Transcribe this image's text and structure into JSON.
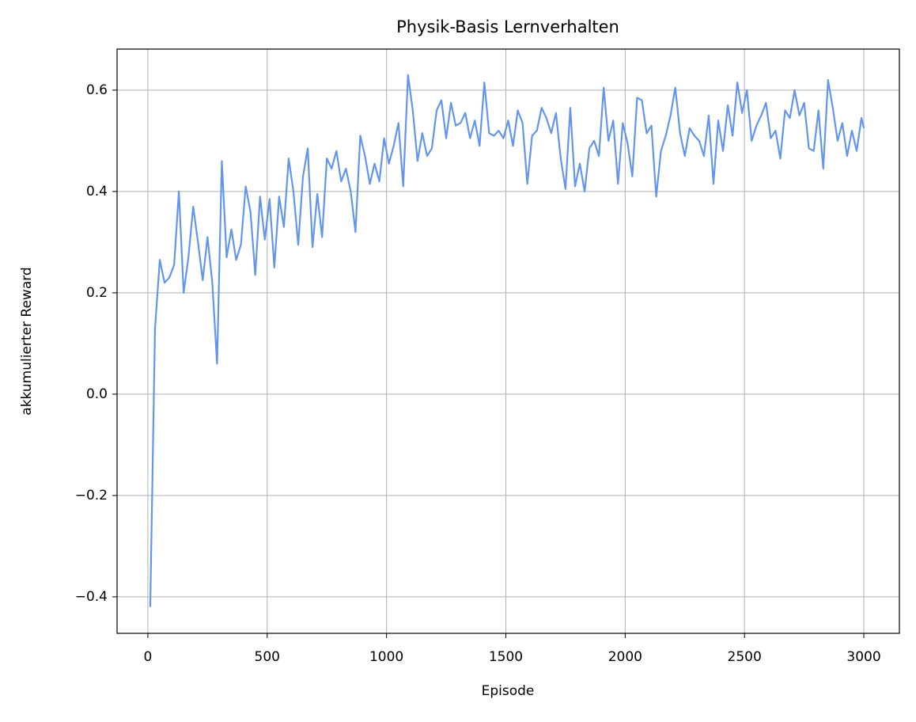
{
  "chart_data": {
    "type": "line",
    "title": "Physik-Basis Lernverhalten",
    "xlabel": "Episode",
    "ylabel": "akkumulierter Reward",
    "x": [
      10,
      30,
      50,
      70,
      90,
      110,
      130,
      150,
      170,
      190,
      210,
      230,
      250,
      270,
      290,
      310,
      330,
      350,
      370,
      390,
      410,
      430,
      450,
      470,
      490,
      510,
      530,
      550,
      570,
      590,
      610,
      630,
      650,
      670,
      690,
      710,
      730,
      750,
      770,
      790,
      810,
      830,
      850,
      870,
      890,
      910,
      930,
      950,
      970,
      990,
      1010,
      1030,
      1050,
      1070,
      1090,
      1110,
      1130,
      1150,
      1170,
      1190,
      1210,
      1230,
      1250,
      1270,
      1290,
      1310,
      1330,
      1350,
      1370,
      1390,
      1410,
      1430,
      1450,
      1470,
      1490,
      1510,
      1530,
      1550,
      1570,
      1590,
      1610,
      1630,
      1650,
      1670,
      1690,
      1710,
      1730,
      1750,
      1770,
      1790,
      1810,
      1830,
      1850,
      1870,
      1890,
      1910,
      1930,
      1950,
      1970,
      1990,
      2010,
      2030,
      2050,
      2070,
      2090,
      2110,
      2130,
      2150,
      2170,
      2190,
      2210,
      2230,
      2250,
      2270,
      2290,
      2310,
      2330,
      2350,
      2370,
      2390,
      2410,
      2430,
      2450,
      2470,
      2490,
      2510,
      2530,
      2550,
      2570,
      2590,
      2610,
      2630,
      2650,
      2670,
      2690,
      2710,
      2730,
      2750,
      2770,
      2790,
      2810,
      2830,
      2850,
      2870,
      2890,
      2910,
      2930,
      2950,
      2970,
      2990,
      3000
    ],
    "series": [
      {
        "name": "Reward",
        "color": "#6495ed",
        "values": [
          -0.42,
          0.13,
          0.265,
          0.22,
          0.23,
          0.255,
          0.4,
          0.2,
          0.27,
          0.37,
          0.3,
          0.225,
          0.31,
          0.22,
          0.06,
          0.46,
          0.27,
          0.325,
          0.265,
          0.295,
          0.41,
          0.36,
          0.235,
          0.39,
          0.305,
          0.385,
          0.25,
          0.39,
          0.33,
          0.465,
          0.4,
          0.295,
          0.43,
          0.485,
          0.29,
          0.395,
          0.31,
          0.465,
          0.445,
          0.48,
          0.42,
          0.445,
          0.4,
          0.32,
          0.51,
          0.47,
          0.415,
          0.455,
          0.42,
          0.505,
          0.455,
          0.49,
          0.535,
          0.41,
          0.63,
          0.56,
          0.46,
          0.515,
          0.47,
          0.485,
          0.56,
          0.58,
          0.505,
          0.575,
          0.53,
          0.535,
          0.555,
          0.505,
          0.54,
          0.49,
          0.615,
          0.515,
          0.51,
          0.52,
          0.505,
          0.54,
          0.49,
          0.56,
          0.535,
          0.415,
          0.51,
          0.52,
          0.565,
          0.545,
          0.515,
          0.555,
          0.465,
          0.405,
          0.565,
          0.41,
          0.455,
          0.4,
          0.485,
          0.5,
          0.47,
          0.605,
          0.5,
          0.54,
          0.415,
          0.535,
          0.495,
          0.43,
          0.585,
          0.58,
          0.515,
          0.53,
          0.39,
          0.48,
          0.51,
          0.55,
          0.605,
          0.515,
          0.47,
          0.525,
          0.51,
          0.5,
          0.47,
          0.55,
          0.415,
          0.54,
          0.48,
          0.57,
          0.51,
          0.615,
          0.555,
          0.6,
          0.5,
          0.53,
          0.55,
          0.575,
          0.505,
          0.52,
          0.465,
          0.56,
          0.545,
          0.6,
          0.55,
          0.575,
          0.485,
          0.48,
          0.56,
          0.445,
          0.62,
          0.565,
          0.5,
          0.535,
          0.47,
          0.52,
          0.48,
          0.545,
          0.525
        ]
      }
    ],
    "xlim": [
      -129,
      3149
    ],
    "ylim": [
      -0.472,
      0.681
    ],
    "xticks": [
      0,
      500,
      1000,
      1500,
      2000,
      2500,
      3000
    ],
    "yticks": [
      {
        "value": -0.4,
        "label": "−0.4"
      },
      {
        "value": -0.2,
        "label": "−0.2"
      },
      {
        "value": 0,
        "label": "0.0"
      },
      0.2,
      0.4,
      0.6
    ],
    "grid": true
  }
}
